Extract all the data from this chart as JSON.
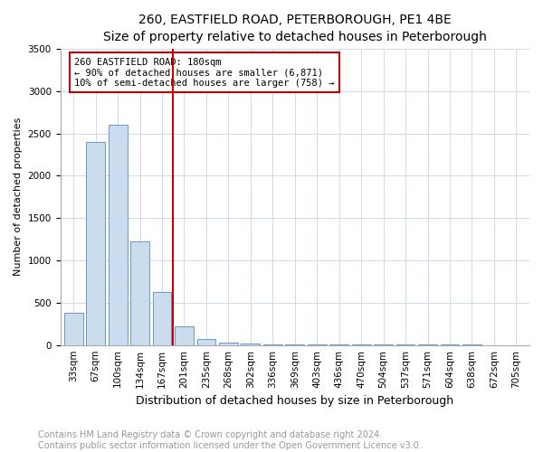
{
  "title": "260, EASTFIELD ROAD, PETERBOROUGH, PE1 4BE",
  "subtitle": "Size of property relative to detached houses in Peterborough",
  "xlabel": "Distribution of detached houses by size in Peterborough",
  "ylabel": "Number of detached properties",
  "categories": [
    "33sqm",
    "67sqm",
    "100sqm",
    "134sqm",
    "167sqm",
    "201sqm",
    "235sqm",
    "268sqm",
    "302sqm",
    "336sqm",
    "369sqm",
    "403sqm",
    "436sqm",
    "470sqm",
    "504sqm",
    "537sqm",
    "571sqm",
    "604sqm",
    "638sqm",
    "672sqm",
    "705sqm"
  ],
  "values": [
    380,
    2400,
    2600,
    1220,
    630,
    220,
    70,
    30,
    15,
    10,
    8,
    6,
    5,
    4,
    3,
    3,
    2,
    2,
    2,
    1,
    1
  ],
  "bar_color": "#ccdcef",
  "bar_edge_color": "#6699cc",
  "vline_x_index": 4.5,
  "vline_color": "#cc0000",
  "annotation_text": "260 EASTFIELD ROAD: 180sqm\n← 90% of detached houses are smaller (6,871)\n10% of semi-detached houses are larger (758) →",
  "annotation_box_color": "#cc0000",
  "ylim": [
    0,
    3500
  ],
  "yticks": [
    0,
    500,
    1000,
    1500,
    2000,
    2500,
    3000,
    3500
  ],
  "footer_text": "Contains HM Land Registry data © Crown copyright and database right 2024.\nContains public sector information licensed under the Open Government Licence v3.0.",
  "title_fontsize": 10,
  "xlabel_fontsize": 9,
  "ylabel_fontsize": 8,
  "tick_fontsize": 7.5,
  "footer_fontsize": 7,
  "bg_color": "#ffffff",
  "grid_color": "#d0d8ec"
}
